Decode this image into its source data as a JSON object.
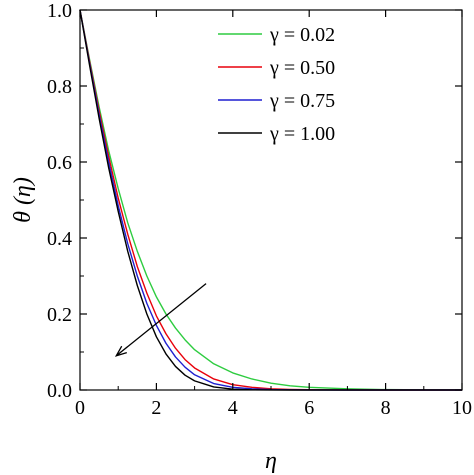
{
  "chart_data": {
    "type": "line",
    "title": "",
    "xlabel": "η",
    "ylabel": "θ (η)",
    "xlim": [
      0,
      10
    ],
    "ylim": [
      0,
      1
    ],
    "xticks": [
      "0",
      "2",
      "4",
      "6",
      "8",
      "10"
    ],
    "yticks": [
      "0.0",
      "0.2",
      "0.4",
      "0.6",
      "0.8",
      "1.0"
    ],
    "grid": false,
    "legend_position": "top-right",
    "series": [
      {
        "name": "γ = 0.02",
        "color": "#2ecc40",
        "x": [
          0,
          0.25,
          0.5,
          0.75,
          1.0,
          1.25,
          1.5,
          1.75,
          2.0,
          2.25,
          2.5,
          2.75,
          3.0,
          3.5,
          4.0,
          4.5,
          5.0,
          5.5,
          6.0,
          7.0,
          8.0,
          9.0,
          10.0
        ],
        "values": [
          1.0,
          0.87,
          0.745,
          0.63,
          0.53,
          0.44,
          0.365,
          0.3,
          0.245,
          0.2,
          0.163,
          0.132,
          0.106,
          0.069,
          0.045,
          0.029,
          0.018,
          0.011,
          0.007,
          0.003,
          0.001,
          0.0005,
          0.0002
        ]
      },
      {
        "name": "γ = 0.50",
        "color": "#e8000b",
        "x": [
          0,
          0.25,
          0.5,
          0.75,
          1.0,
          1.25,
          1.5,
          1.75,
          2.0,
          2.25,
          2.5,
          2.75,
          3.0,
          3.5,
          4.0,
          4.5,
          5.0,
          5.5,
          6.0,
          7.0,
          8.0,
          9.0,
          10.0
        ],
        "values": [
          1.0,
          0.865,
          0.735,
          0.615,
          0.505,
          0.41,
          0.325,
          0.255,
          0.195,
          0.148,
          0.11,
          0.08,
          0.058,
          0.029,
          0.014,
          0.007,
          0.003,
          0.0015,
          0.0007,
          0.0002,
          0.0,
          0.0,
          0.0
        ]
      },
      {
        "name": "γ = 0.75",
        "color": "#1f1fd0",
        "x": [
          0,
          0.25,
          0.5,
          0.75,
          1.0,
          1.25,
          1.5,
          1.75,
          2.0,
          2.25,
          2.5,
          2.75,
          3.0,
          3.5,
          4.0,
          4.5,
          5.0,
          5.5,
          6.0,
          7.0,
          8.0,
          9.0,
          10.0
        ],
        "values": [
          1.0,
          0.86,
          0.725,
          0.6,
          0.485,
          0.385,
          0.3,
          0.228,
          0.17,
          0.123,
          0.087,
          0.06,
          0.04,
          0.017,
          0.007,
          0.003,
          0.001,
          0.0004,
          0.0001,
          0.0,
          0.0,
          0.0,
          0.0
        ]
      },
      {
        "name": "γ = 1.00",
        "color": "#000000",
        "x": [
          0,
          0.25,
          0.5,
          0.75,
          1.0,
          1.25,
          1.5,
          1.75,
          2.0,
          2.25,
          2.5,
          2.75,
          3.0,
          3.5,
          4.0,
          4.5,
          5.0,
          5.5,
          6.0,
          7.0,
          8.0,
          9.0,
          10.0
        ],
        "values": [
          1.0,
          0.855,
          0.715,
          0.585,
          0.47,
          0.365,
          0.275,
          0.2,
          0.14,
          0.095,
          0.062,
          0.039,
          0.024,
          0.008,
          0.002,
          0.0006,
          0.0001,
          0.0,
          0.0,
          0.0,
          0.0,
          0.0,
          0.0
        ]
      }
    ],
    "annotation_arrow": {
      "from": [
        3.3,
        0.28
      ],
      "to": [
        0.95,
        0.09
      ],
      "color": "#000000"
    }
  }
}
